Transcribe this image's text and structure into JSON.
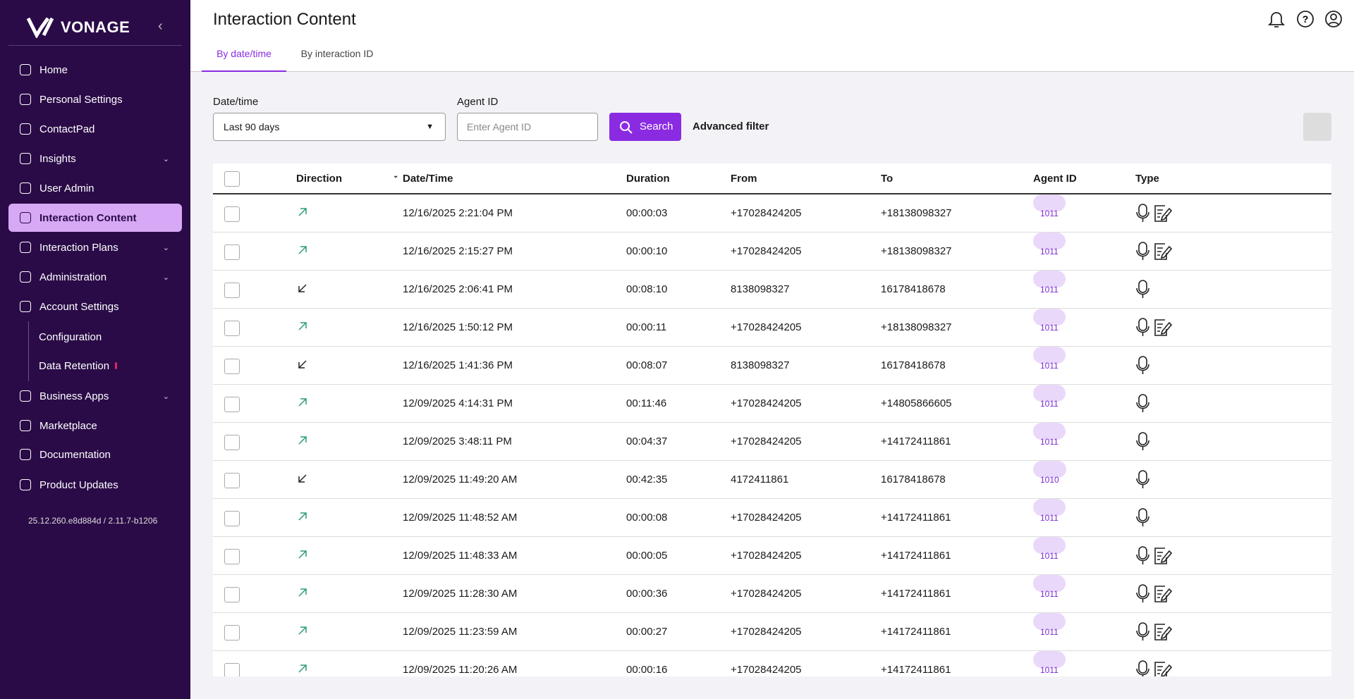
{
  "sidebar": {
    "brand": "VONAGE",
    "nav": [
      "Home",
      "Personal Settings",
      "ContactPad",
      "Insights",
      "User Admin",
      "Interaction Content",
      "Interaction Plans",
      "Administration",
      "Account Settings",
      "Configuration",
      "Data Retention",
      "Business Apps",
      "Marketplace",
      "Documentation",
      "Product Updates"
    ],
    "version": "25.12.260.e8d884d / 2.11.7-b1206"
  },
  "header": {
    "title": "Interaction Content",
    "tabs": [
      "By date/time",
      "By interaction ID"
    ]
  },
  "filters": {
    "date_label": "Date/time",
    "date_value": "Last 90 days",
    "agent_label": "Agent ID",
    "agent_placeholder": "Enter Agent ID",
    "search": "Search",
    "advanced": "Advanced filter"
  },
  "table": {
    "headers": [
      "Direction",
      "Date/Time",
      "Duration",
      "From",
      "To",
      "Agent ID",
      "Type"
    ],
    "rows": [
      [
        "12/16/2025 2:21:04 PM",
        "00:00:03",
        "+17028424205",
        "+18138098327",
        "1011"
      ],
      [
        "12/16/2025 2:15:27 PM",
        "00:00:10",
        "+17028424205",
        "+18138098327",
        "1011"
      ],
      [
        "12/16/2025 2:06:41 PM",
        "00:08:10",
        "8138098327",
        "16178418678",
        "1011"
      ],
      [
        "12/16/2025 1:50:12 PM",
        "00:00:11",
        "+17028424205",
        "+18138098327",
        "1011"
      ],
      [
        "12/16/2025 1:41:36 PM",
        "00:08:07",
        "8138098327",
        "16178418678",
        "1011"
      ],
      [
        "12/09/2025 4:14:31 PM",
        "00:11:46",
        "+17028424205",
        "+14805866605",
        "1011"
      ],
      [
        "12/09/2025 3:48:11 PM",
        "00:04:37",
        "+17028424205",
        "+14172411861",
        "1011"
      ],
      [
        "12/09/2025 11:49:20 AM",
        "00:42:35",
        "4172411861",
        "16178418678",
        "1010"
      ],
      [
        "12/09/2025 11:48:52 AM",
        "00:00:08",
        "+17028424205",
        "+14172411861",
        "1011"
      ],
      [
        "12/09/2025 11:48:33 AM",
        "00:00:05",
        "+17028424205",
        "+14172411861",
        "1011"
      ],
      [
        "12/09/2025 11:28:30 AM",
        "00:00:36",
        "+17028424205",
        "+14172411861",
        "1011"
      ],
      [
        "12/09/2025 11:23:59 AM",
        "00:00:27",
        "+17028424205",
        "+14172411861",
        "1011"
      ],
      [
        "12/09/2025 11:20:26 AM",
        "00:00:16",
        "+17028424205",
        "+14172411861",
        "1011"
      ]
    ]
  }
}
